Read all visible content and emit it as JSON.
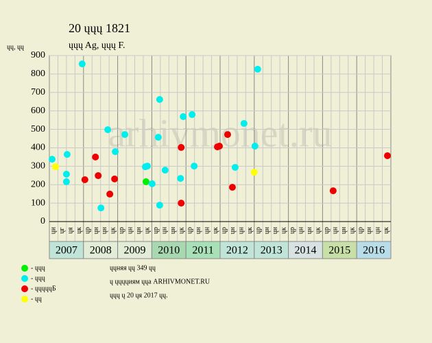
{
  "chart_data": {
    "type": "scatter",
    "title": "20 ųųų 1821",
    "subtitle": "ųųų Ag, ųųų F.",
    "y_label": "ųų, ųų",
    "watermark": "arhivmonet.ru",
    "xlim": [
      2007,
      2017
    ],
    "ylim": [
      0,
      900
    ],
    "yticks": [
      0,
      100,
      200,
      300,
      400,
      500,
      600,
      700,
      800,
      900
    ],
    "grid": true,
    "years": [
      "2007",
      "2008",
      "2009",
      "2010",
      "2011",
      "2012",
      "2013",
      "2014",
      "2015",
      "2016"
    ],
    "year_colors": [
      "#c0e4d8",
      "#e2ecd6",
      "#e2ecd6",
      "#a8d8b0",
      "#a8e0b8",
      "#c0e4d8",
      "#c0e4d8",
      "#d8e2e2",
      "#c8e0a8",
      "#b8dce8"
    ],
    "column_labels": [
      "ųи",
      "ųг",
      "ųя",
      "ųк",
      "ųр",
      "ųн",
      "ųн",
      "ųк",
      "ųр",
      "ųн",
      "ųн",
      "ųк",
      "ųр",
      "ųн",
      "ųн",
      "ųк",
      "ųр",
      "ųн",
      "ųн",
      "ųк",
      "ųр",
      "ųн",
      "ųн",
      "ųк",
      "ųр",
      "ųн",
      "ųн",
      "ųк",
      "ųр",
      "ųн",
      "ųн",
      "ųк",
      "ųр",
      "ųн",
      "ųн",
      "ųк",
      "ųр",
      "ųн",
      "ųн",
      "ųк"
    ],
    "series": [
      {
        "name": "- ųųų",
        "color": "#00ee00",
        "x": [
          2009.83
        ],
        "values": [
          216
        ]
      },
      {
        "name": "- ųųų",
        "color": "#00eeee",
        "x": [
          2007.08,
          2007.5,
          2007.5,
          2007.52,
          2007.96,
          2008.51,
          2008.71,
          2008.93,
          2009.21,
          2009.81,
          2009.87,
          2010.01,
          2010.23,
          2010.23,
          2010.19,
          2010.39,
          2010.84,
          2010.92,
          2011.18,
          2011.24,
          2012.44,
          2012.7,
          2013.02,
          2013.1
        ],
        "values": [
          338,
          257,
          216,
          364,
          855,
          74,
          498,
          379,
          472,
          297,
          301,
          205,
          662,
          89,
          457,
          279,
          234,
          569,
          580,
          301,
          294,
          532,
          409,
          826
        ]
      },
      {
        "name": "- ųųųųųБ",
        "color": "#ee0000",
        "x": [
          2008.04,
          2008.35,
          2008.43,
          2008.77,
          2008.91,
          2010.86,
          2010.86,
          2011.92,
          2011.98,
          2012.22,
          2012.36,
          2015.31,
          2016.9
        ],
        "values": [
          227,
          350,
          249,
          149,
          231,
          402,
          100,
          405,
          409,
          472,
          186,
          167,
          357
        ]
      },
      {
        "name": "- ųų",
        "color": "#ffff00",
        "x": [
          2007.18,
          2013.0
        ],
        "values": [
          297,
          268
        ]
      }
    ],
    "notes": [
      "ųųняя ųų 349 ųų",
      "ų ųųųųиям ųųа ARHIVMONET.RU",
      "ųųų ų 20 ųя 2017 ųų."
    ]
  }
}
